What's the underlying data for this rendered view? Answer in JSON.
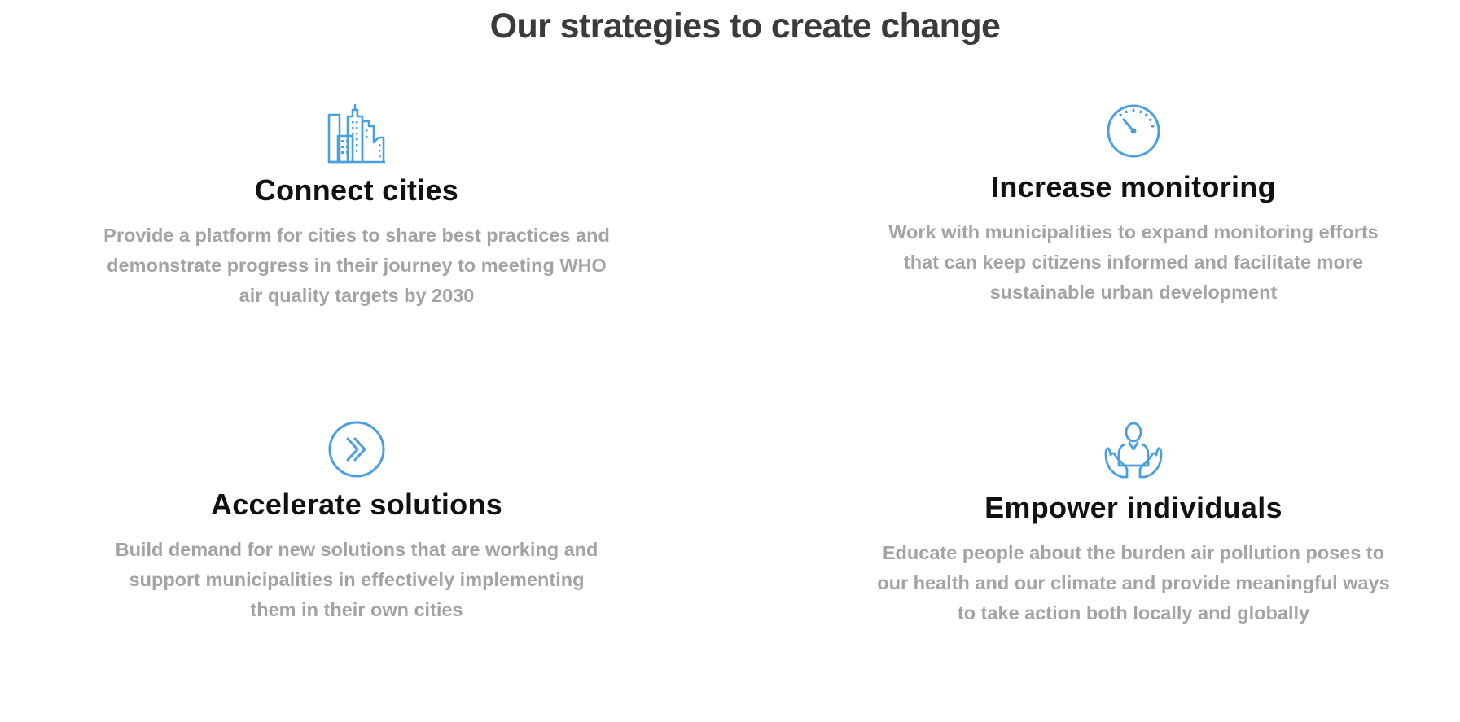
{
  "page": {
    "title": "Our strategies to create change"
  },
  "colors": {
    "accent": "#4a9fe0",
    "heading": "#111111",
    "title": "#3b3b3b",
    "body_text": "#a3a3a3"
  },
  "strategies": [
    {
      "icon": "city-buildings-icon",
      "heading": "Connect cities",
      "description": "Provide a platform for cities to share best practices and demonstrate progress in their journey to meeting WHO air quality targets by 2030"
    },
    {
      "icon": "gauge-icon",
      "heading": "Increase monitoring",
      "description": "Work with municipalities to expand monitoring efforts that can keep citizens informed and facilitate more sustainable urban development"
    },
    {
      "icon": "double-chevron-right-icon",
      "heading": "Accelerate solutions",
      "description": "Build demand for new solutions that are working and support municipalities in effectively implementing them in their own cities"
    },
    {
      "icon": "person-in-hands-icon",
      "heading": "Empower individuals",
      "description": "Educate people about the burden air pollution poses to our health and our climate and provide meaningful ways to take action both locally and globally"
    }
  ]
}
